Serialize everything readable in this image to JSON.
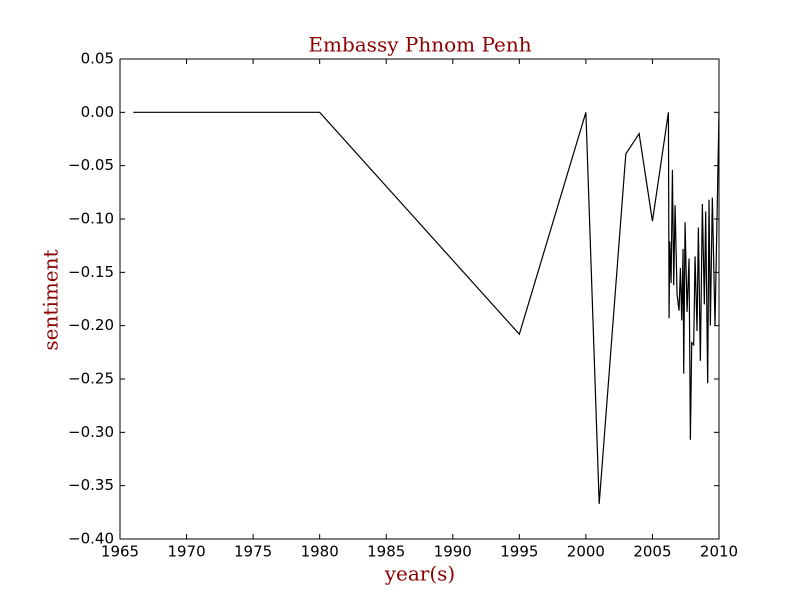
{
  "chart_data": {
    "type": "line",
    "title": "Embassy Phnom Penh",
    "x_label": "year(s)",
    "y_label": "sentiment",
    "x": [
      1966,
      1980,
      1995,
      2000,
      2001,
      2003,
      2004,
      2005,
      2006.2,
      2006.25,
      2006.3,
      2006.4,
      2006.5,
      2006.6,
      2006.7,
      2006.85,
      2007.0,
      2007.1,
      2007.2,
      2007.3,
      2007.35,
      2007.45,
      2007.6,
      2007.75,
      2007.85,
      2007.95,
      2008.1,
      2008.2,
      2008.35,
      2008.45,
      2008.6,
      2008.75,
      2008.9,
      2009.0,
      2009.15,
      2009.25,
      2009.35,
      2009.5,
      2009.7,
      2010.0
    ],
    "series": [
      {
        "color": "#000000",
        "values": [
          0,
          0,
          -0.208,
          0,
          -0.367,
          -0.039,
          -0.02,
          -0.102,
          0,
          -0.193,
          -0.121,
          -0.16,
          -0.054,
          -0.162,
          -0.087,
          -0.171,
          -0.186,
          -0.146,
          -0.195,
          -0.128,
          -0.245,
          -0.103,
          -0.187,
          -0.137,
          -0.307,
          -0.216,
          -0.218,
          -0.135,
          -0.205,
          -0.108,
          -0.233,
          -0.086,
          -0.18,
          -0.093,
          -0.254,
          -0.082,
          -0.2,
          -0.08,
          -0.2,
          0
        ]
      }
    ],
    "xlim": [
      1965,
      2010
    ],
    "xticks": [
      1965,
      1970,
      1975,
      1980,
      1985,
      1990,
      1995,
      2000,
      2005,
      2010
    ],
    "ylim": [
      -0.4,
      0.05
    ],
    "yticks": [
      {
        "value": -0.4,
        "label": "−0.40"
      },
      {
        "value": -0.35,
        "label": "−0.35"
      },
      {
        "value": -0.3,
        "label": "−0.30"
      },
      {
        "value": -0.25,
        "label": "−0.25"
      },
      {
        "value": -0.2,
        "label": "−0.20"
      },
      {
        "value": -0.15,
        "label": "−0.15"
      },
      {
        "value": -0.1,
        "label": "−0.10"
      },
      {
        "value": -0.05,
        "label": "−0.05"
      },
      {
        "value": 0,
        "label": "0.00"
      },
      {
        "value": 0.05,
        "label": "0.05"
      }
    ],
    "label_color": "#8b0000"
  }
}
